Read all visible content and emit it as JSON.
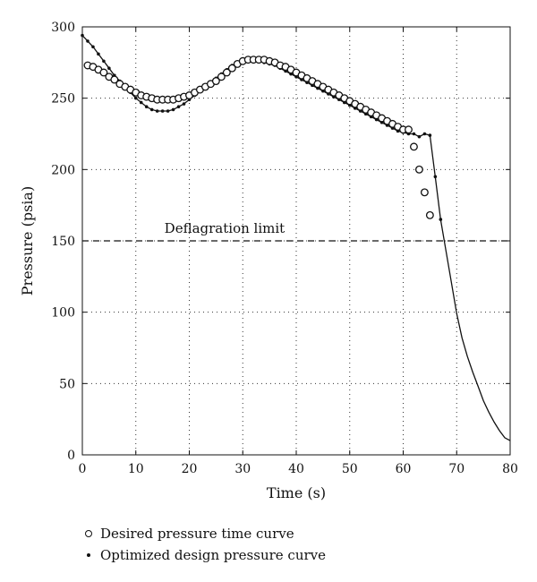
{
  "chart_data": {
    "type": "scatter",
    "xlabel": "Time (s)",
    "ylabel": "Pressure (psia)",
    "xlim": [
      0,
      80
    ],
    "ylim": [
      0,
      300
    ],
    "xticks": [
      "0",
      "10",
      "20",
      "30",
      "40",
      "50",
      "60",
      "70",
      "80"
    ],
    "yticks": [
      "0",
      "50",
      "100",
      "150",
      "200",
      "250",
      "300"
    ],
    "grid": true,
    "annotation": {
      "text": "Deflagration limit",
      "y": 150
    },
    "series": [
      {
        "name": "Desired pressure time curve",
        "marker": "circle",
        "x": [
          1,
          2,
          3,
          4,
          5,
          6,
          7,
          8,
          9,
          10,
          11,
          12,
          13,
          14,
          15,
          16,
          17,
          18,
          19,
          20,
          21,
          22,
          23,
          24,
          25,
          26,
          27,
          28,
          29,
          30,
          31,
          32,
          33,
          34,
          35,
          36,
          37,
          38,
          39,
          40,
          41,
          42,
          43,
          44,
          45,
          46,
          47,
          48,
          49,
          50,
          51,
          52,
          53,
          54,
          55,
          56,
          57,
          58,
          59,
          60,
          61,
          62,
          63,
          64,
          65
        ],
        "y": [
          273,
          272,
          270,
          268,
          265,
          263,
          260,
          258,
          256,
          254,
          252,
          251,
          250,
          249,
          249,
          249,
          249,
          250,
          251,
          252,
          254,
          256,
          258,
          260,
          262,
          265,
          268,
          271,
          274,
          276,
          277,
          277,
          277,
          277,
          276,
          275,
          273,
          272,
          270,
          268,
          266,
          264,
          262,
          260,
          258,
          256,
          254,
          252,
          250,
          248,
          246,
          244,
          242,
          240,
          238,
          236,
          234,
          232,
          230,
          228,
          228,
          216,
          200,
          184,
          168
        ]
      },
      {
        "name": "Optimized design pressure curve",
        "marker": "dot",
        "x": [
          0,
          1,
          2,
          3,
          4,
          5,
          6,
          7,
          8,
          9,
          10,
          11,
          12,
          13,
          14,
          15,
          16,
          17,
          18,
          19,
          20,
          21,
          22,
          23,
          24,
          25,
          26,
          27,
          28,
          29,
          30,
          31,
          32,
          33,
          34,
          35,
          36,
          37,
          38,
          39,
          40,
          41,
          42,
          43,
          44,
          45,
          46,
          47,
          48,
          49,
          50,
          51,
          52,
          53,
          54,
          55,
          56,
          57,
          58,
          59,
          60,
          61,
          62,
          63,
          64,
          65,
          66,
          67,
          68,
          69,
          70,
          71,
          72,
          73,
          74,
          75,
          76,
          77,
          78,
          79,
          80
        ],
        "y": [
          294,
          290,
          286,
          281,
          276,
          271,
          266,
          262,
          258,
          254,
          250,
          247,
          244,
          242,
          241,
          241,
          241,
          242,
          244,
          246,
          249,
          252,
          255,
          258,
          261,
          264,
          267,
          270,
          273,
          275,
          276,
          276,
          276,
          276,
          275,
          274,
          273,
          271,
          269,
          267,
          265,
          263,
          261,
          259,
          257,
          255,
          253,
          251,
          249,
          247,
          245,
          243,
          241,
          239,
          237,
          235,
          233,
          231,
          229,
          227,
          226,
          225,
          225,
          223,
          225,
          224,
          195,
          165,
          143,
          121,
          99,
          82,
          69,
          58,
          48,
          38,
          30,
          23,
          17,
          12,
          10
        ]
      }
    ]
  }
}
